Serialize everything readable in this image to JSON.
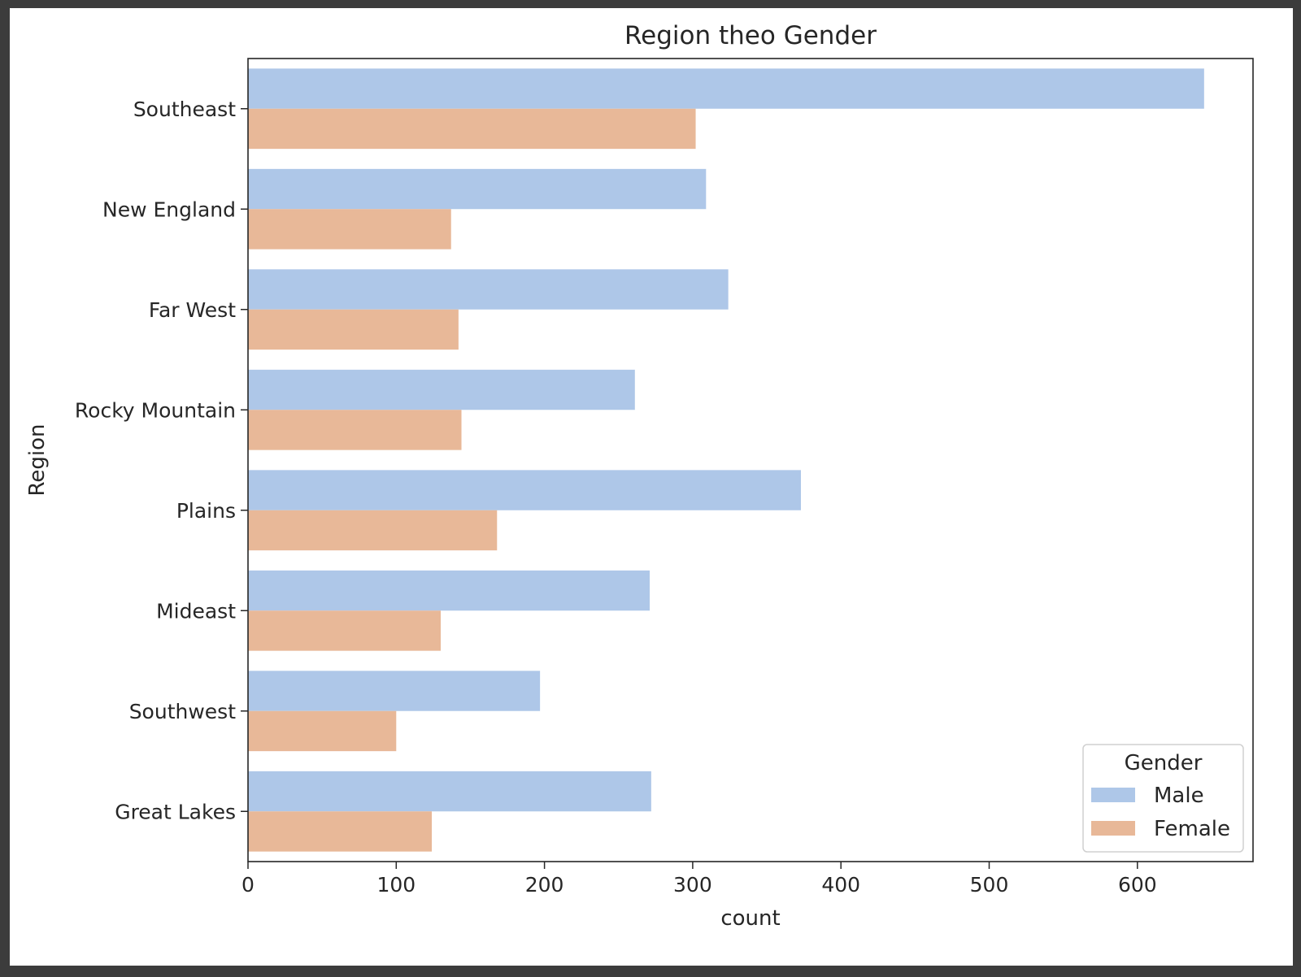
{
  "chart_data": {
    "type": "bar",
    "orientation": "horizontal",
    "title": "Region theo Gender",
    "xlabel": "count",
    "ylabel": "Region",
    "categories": [
      "Southeast",
      "New England",
      "Far West",
      "Rocky Mountain",
      "Plains",
      "Mideast",
      "Southwest",
      "Great Lakes"
    ],
    "series": [
      {
        "name": "Male",
        "color": "#aec7e8",
        "values": [
          645,
          309,
          324,
          261,
          373,
          271,
          197,
          272
        ]
      },
      {
        "name": "Female",
        "color": "#e8b898",
        "values": [
          302,
          137,
          142,
          144,
          168,
          130,
          100,
          124
        ]
      }
    ],
    "xlim": [
      0,
      678
    ],
    "xticks": [
      0,
      100,
      200,
      300,
      400,
      500,
      600
    ],
    "grid": false,
    "legend": {
      "title": "Gender",
      "placement": "lower-right"
    }
  }
}
